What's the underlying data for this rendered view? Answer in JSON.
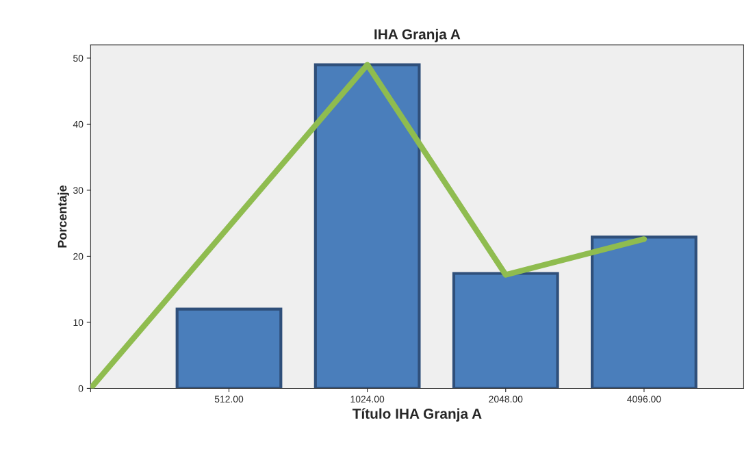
{
  "chart_data": {
    "type": "bar",
    "title": "IHA Granja A",
    "xlabel": "Título IHA Granja A",
    "ylabel": "Porcentaje",
    "categories": [
      null,
      "512.00",
      "1024.00",
      "2048.00",
      "4096.00"
    ],
    "ylim": [
      0,
      52
    ],
    "yticks": [
      0,
      10,
      20,
      30,
      40,
      50
    ],
    "series": [
      {
        "color": "#4a7ebb",
        "values": [
          null,
          12,
          49,
          17.4,
          22.9
        ]
      },
      {
        "type": "line",
        "color": "#8fbc4f",
        "values": [
          0,
          null,
          49,
          17.2,
          22.6
        ]
      }
    ]
  }
}
